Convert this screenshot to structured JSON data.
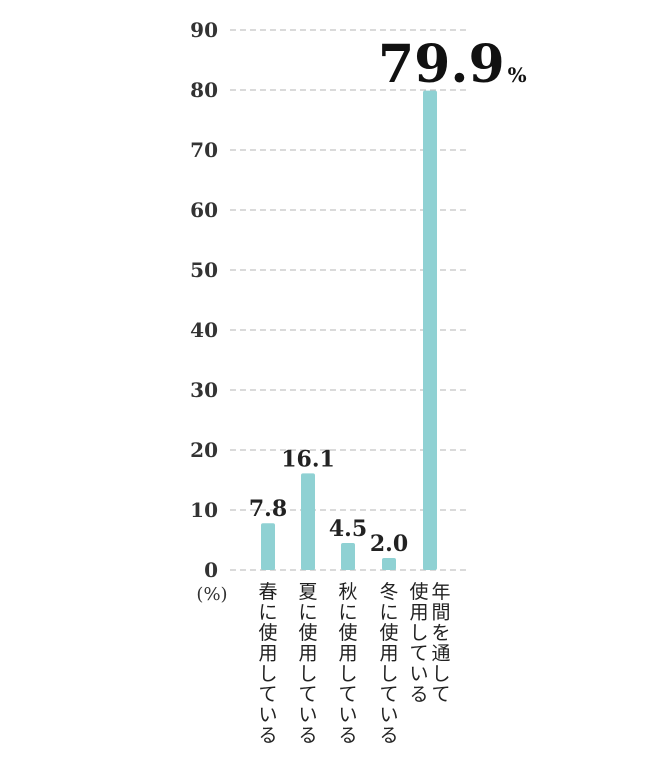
{
  "chart_data": {
    "type": "bar",
    "categories": [
      "春に使用している",
      "夏に使用している",
      "秋に使用している",
      "冬に使用している",
      "年間を通して使用している"
    ],
    "category_lines": [
      [
        "春に使用している"
      ],
      [
        "夏に使用している"
      ],
      [
        "秋に使用している"
      ],
      [
        "冬に使用している"
      ],
      [
        "年間を通して",
        "使用している"
      ]
    ],
    "values": [
      7.8,
      16.1,
      4.5,
      2.0,
      79.9
    ],
    "value_labels": [
      "7.8",
      "16.1",
      "4.5",
      "2.0",
      "79.9"
    ],
    "highlight_suffix": "%",
    "yticks": [
      0,
      10,
      20,
      30,
      40,
      50,
      60,
      70,
      80,
      90
    ],
    "ylim": [
      0,
      90
    ],
    "yunit": "(%)",
    "grid": true,
    "bar_color": "#8fd1d3"
  }
}
